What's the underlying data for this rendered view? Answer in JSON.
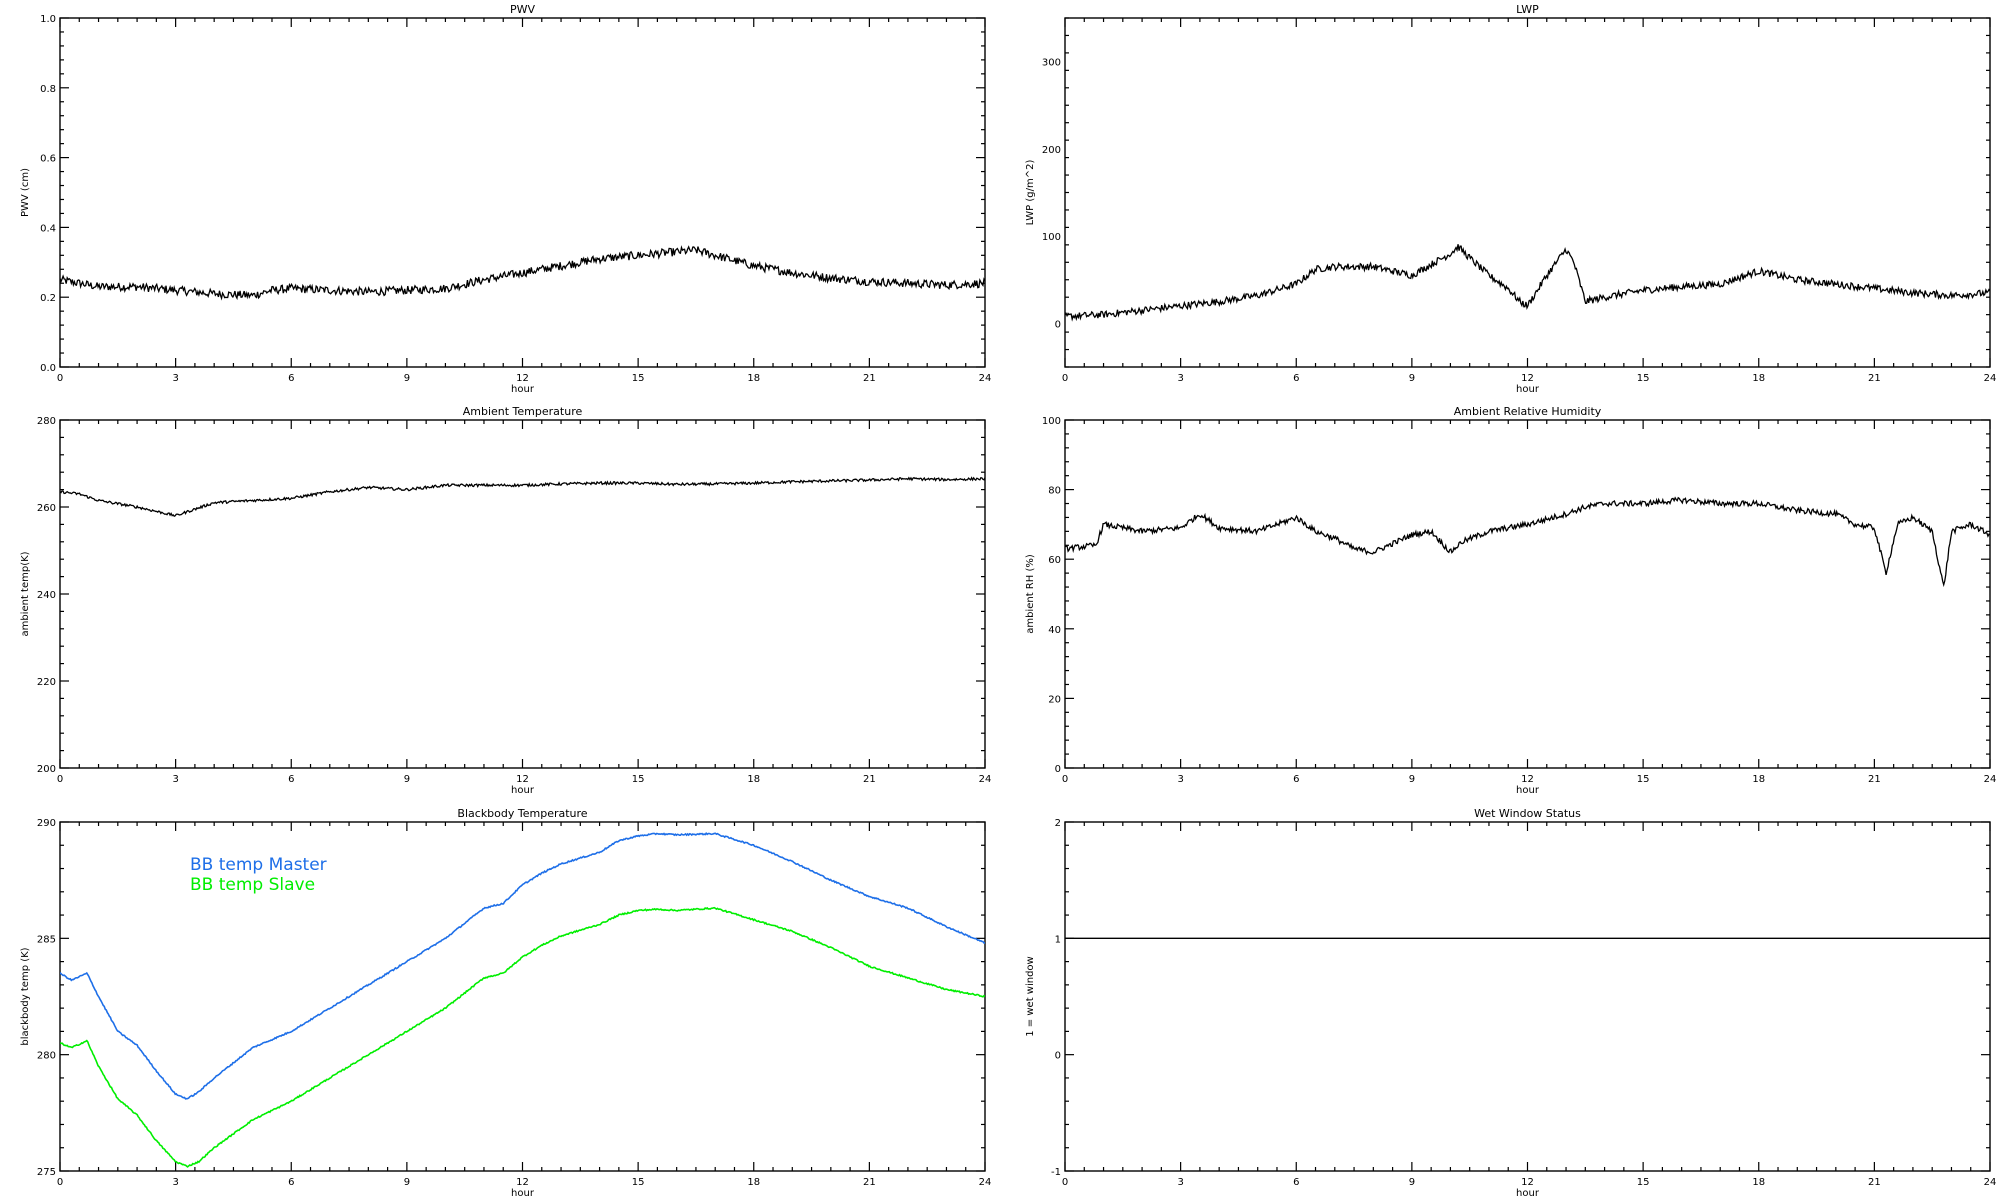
{
  "chart_data": [
    {
      "id": "pwv",
      "type": "line",
      "title": "PWV",
      "xlabel": "hour",
      "ylabel": "PWV (cm)",
      "xlim": [
        0,
        24
      ],
      "ylim": [
        0.0,
        1.0
      ],
      "xticks": [
        0,
        3,
        6,
        9,
        12,
        15,
        18,
        21,
        24
      ],
      "yticks": [
        "0.0",
        "0.2",
        "0.4",
        "0.6",
        "0.8",
        "1.0"
      ],
      "ytick_values": [
        0,
        0.2,
        0.4,
        0.6,
        0.8,
        1.0
      ],
      "noise": 0.012,
      "series": [
        {
          "color": "#000000",
          "x": [
            0,
            0.5,
            1,
            2,
            3,
            4,
            5,
            5.5,
            6,
            7,
            8,
            9,
            10,
            11,
            12,
            13,
            14,
            15,
            16,
            16.5,
            17,
            18,
            19,
            20,
            21,
            22,
            23,
            24
          ],
          "values": [
            0.25,
            0.24,
            0.23,
            0.23,
            0.22,
            0.21,
            0.205,
            0.22,
            0.225,
            0.22,
            0.215,
            0.22,
            0.225,
            0.25,
            0.27,
            0.29,
            0.31,
            0.32,
            0.33,
            0.335,
            0.32,
            0.29,
            0.27,
            0.255,
            0.245,
            0.24,
            0.235,
            0.24
          ]
        }
      ]
    },
    {
      "id": "lwp",
      "type": "line",
      "title": "LWP",
      "xlabel": "hour",
      "ylabel": "LWP (g/m^2)",
      "xlim": [
        0,
        24
      ],
      "ylim": [
        -50,
        350
      ],
      "xticks": [
        0,
        3,
        6,
        9,
        12,
        15,
        18,
        21,
        24
      ],
      "yticks": [
        "0",
        "100",
        "200",
        "300"
      ],
      "ytick_values": [
        0,
        100,
        200,
        300
      ],
      "noise": 4,
      "series": [
        {
          "color": "#000000",
          "x": [
            0,
            1,
            2,
            3,
            4,
            5,
            6,
            6.5,
            7,
            8,
            9,
            10,
            10.2,
            10.5,
            11,
            11.5,
            11.8,
            12,
            12.5,
            13,
            13.2,
            13.5,
            14,
            15,
            16,
            17,
            18,
            19,
            20,
            21,
            22,
            23,
            24
          ],
          "values": [
            8,
            10,
            15,
            20,
            25,
            32,
            45,
            62,
            65,
            65,
            55,
            80,
            88,
            75,
            55,
            40,
            25,
            20,
            55,
            85,
            70,
            25,
            30,
            38,
            42,
            45,
            60,
            50,
            45,
            40,
            35,
            32,
            35
          ]
        }
      ]
    },
    {
      "id": "temp",
      "type": "line",
      "title": "Ambient Temperature",
      "xlabel": "hour",
      "ylabel": "ambient temp(K)",
      "xlim": [
        0,
        24
      ],
      "ylim": [
        200,
        280
      ],
      "xticks": [
        0,
        3,
        6,
        9,
        12,
        15,
        18,
        21,
        24
      ],
      "yticks": [
        "200",
        "220",
        "240",
        "260",
        "280"
      ],
      "ytick_values": [
        200,
        220,
        240,
        260,
        280
      ],
      "noise": 0.3,
      "series": [
        {
          "color": "#000000",
          "x": [
            0,
            0.5,
            1,
            2,
            3,
            3.5,
            4,
            5,
            6,
            7,
            8,
            9,
            10,
            11,
            12,
            13,
            14,
            15,
            16,
            17,
            18,
            19,
            20,
            21,
            22,
            23,
            24
          ],
          "values": [
            263.5,
            263,
            261.5,
            260,
            258,
            259.5,
            261,
            261.5,
            262,
            263.5,
            264.5,
            264,
            265,
            265,
            265,
            265.3,
            265.5,
            265.5,
            265.2,
            265.3,
            265.5,
            265.8,
            266,
            266.2,
            266.5,
            266.3,
            266.5
          ]
        }
      ]
    },
    {
      "id": "rh",
      "type": "line",
      "title": "Ambient Relative Humidity",
      "xlabel": "hour",
      "ylabel": "ambient RH (%)",
      "xlim": [
        0,
        24
      ],
      "ylim": [
        0,
        100
      ],
      "xticks": [
        0,
        3,
        6,
        9,
        12,
        15,
        18,
        21,
        24
      ],
      "yticks": [
        "0",
        "20",
        "40",
        "60",
        "80",
        "100"
      ],
      "ytick_values": [
        0,
        20,
        40,
        60,
        80,
        100
      ],
      "noise": 0.8,
      "series": [
        {
          "color": "#000000",
          "x": [
            0,
            0.8,
            1,
            2,
            3,
            3.5,
            4,
            5,
            6,
            6.5,
            7,
            7.5,
            8,
            9,
            9.5,
            10,
            10.3,
            11,
            12,
            13,
            13.5,
            14,
            15,
            16,
            17,
            18,
            19,
            20,
            20.5,
            21,
            21.3,
            21.6,
            22,
            22.5,
            22.8,
            23,
            23.5,
            24
          ],
          "values": [
            63,
            64,
            70,
            68,
            69,
            73,
            69,
            68,
            72,
            68,
            66,
            63,
            62,
            67,
            68,
            62,
            65,
            68,
            70,
            73,
            75,
            76,
            76,
            77,
            76,
            76,
            74,
            73,
            70,
            69,
            56,
            70,
            72,
            68,
            52,
            68,
            70,
            67
          ]
        }
      ]
    },
    {
      "id": "bb",
      "type": "line",
      "title": "Blackbody Temperature",
      "xlabel": "hour",
      "ylabel": "blackbody temp (K)",
      "xlim": [
        0,
        24
      ],
      "ylim": [
        275,
        290
      ],
      "xticks": [
        0,
        3,
        6,
        9,
        12,
        15,
        18,
        21,
        24
      ],
      "yticks": [
        "275",
        "280",
        "285",
        "290"
      ],
      "ytick_values": [
        275,
        280,
        285,
        290
      ],
      "noise": 0.03,
      "legend": {
        "placement": "top-left",
        "entries": [
          "BB temp Master",
          "BB temp Slave"
        ]
      },
      "series": [
        {
          "name": "BB temp Master",
          "color": "#1e6fe8",
          "x": [
            0,
            0.3,
            0.7,
            1,
            1.5,
            2,
            2.5,
            3,
            3.3,
            3.6,
            4,
            5,
            6,
            7,
            8,
            9,
            10,
            11,
            11.5,
            12,
            12.5,
            13,
            14,
            14.5,
            15,
            15.5,
            16,
            17,
            18,
            19,
            20,
            21,
            22,
            23,
            24
          ],
          "values": [
            283.5,
            283.2,
            283.5,
            282.5,
            281,
            280.4,
            279.3,
            278.3,
            278.1,
            278.4,
            279,
            280.3,
            281,
            282,
            283,
            284,
            285,
            286.3,
            286.5,
            287.3,
            287.8,
            288.2,
            288.7,
            289.2,
            289.4,
            289.5,
            289.45,
            289.5,
            289,
            288.3,
            287.5,
            286.8,
            286.3,
            285.5,
            284.8
          ]
        },
        {
          "name": "BB temp Slave",
          "color": "#00ee00",
          "x": [
            0,
            0.3,
            0.7,
            1,
            1.5,
            2,
            2.5,
            3,
            3.3,
            3.6,
            4,
            5,
            6,
            7,
            8,
            9,
            10,
            11,
            11.5,
            12,
            12.5,
            13,
            14,
            14.5,
            15,
            15.5,
            16,
            17,
            18,
            19,
            20,
            21,
            22,
            23,
            24
          ],
          "values": [
            280.5,
            280.3,
            280.6,
            279.5,
            278.1,
            277.4,
            276.3,
            275.4,
            275.2,
            275.4,
            276,
            277.2,
            278,
            279,
            280,
            281,
            282,
            283.3,
            283.5,
            284.2,
            284.7,
            285.1,
            285.6,
            286,
            286.2,
            286.25,
            286.2,
            286.3,
            285.8,
            285.3,
            284.6,
            283.8,
            283.3,
            282.8,
            282.5
          ]
        }
      ]
    },
    {
      "id": "wet",
      "type": "line",
      "title": "Wet Window Status",
      "xlabel": "hour",
      "ylabel": "1 = wet window",
      "xlim": [
        0,
        24
      ],
      "ylim": [
        -1,
        2
      ],
      "xticks": [
        0,
        3,
        6,
        9,
        12,
        15,
        18,
        21,
        24
      ],
      "yticks": [
        "-1",
        "0",
        "1",
        "2"
      ],
      "ytick_values": [
        -1,
        0,
        1,
        2
      ],
      "noise": 0,
      "series": [
        {
          "color": "#000000",
          "x": [
            0,
            24
          ],
          "values": [
            1,
            1
          ]
        }
      ]
    }
  ]
}
